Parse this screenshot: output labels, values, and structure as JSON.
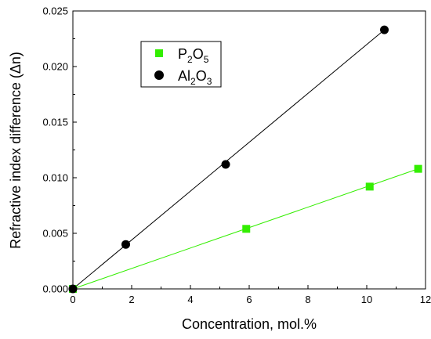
{
  "chart_data": {
    "type": "scatter",
    "title": "",
    "xlabel": "Concentration, mol.%",
    "ylabel": "Refractive index difference (Δn)",
    "xlim": [
      0,
      12
    ],
    "ylim": [
      0,
      0.025
    ],
    "xticks": [
      0,
      2,
      4,
      6,
      8,
      10,
      12
    ],
    "xtick_labels": [
      "0",
      "2",
      "4",
      "6",
      "8",
      "10",
      "12"
    ],
    "yticks": [
      0.0,
      0.005,
      0.01,
      0.015,
      0.02,
      0.025
    ],
    "ytick_labels": [
      "0.000",
      "0.005",
      "0.010",
      "0.015",
      "0.020",
      "0.025"
    ],
    "grid": false,
    "legend_position": "top-left",
    "series": [
      {
        "name": "P2O5",
        "legend": {
          "base": "P",
          "sub1": "2",
          "mid": "O",
          "sub2": "5"
        },
        "marker": "square",
        "color": "#33ee00",
        "points": [
          {
            "x": 0,
            "y": 0.0
          },
          {
            "x": 5.9,
            "y": 0.0054
          },
          {
            "x": 10.1,
            "y": 0.0092
          },
          {
            "x": 11.75,
            "y": 0.0108
          }
        ],
        "fit_line": {
          "x": [
            0,
            11.75
          ],
          "y": [
            0,
            0.0108
          ]
        }
      },
      {
        "name": "Al2O3",
        "legend": {
          "base": "Al",
          "sub1": "2",
          "mid": "O",
          "sub2": "3"
        },
        "marker": "circle",
        "color": "#000000",
        "points": [
          {
            "x": 0,
            "y": 0.0
          },
          {
            "x": 1.8,
            "y": 0.004
          },
          {
            "x": 5.2,
            "y": 0.0112
          },
          {
            "x": 10.6,
            "y": 0.0233
          }
        ],
        "fit_line": {
          "x": [
            0,
            10.6
          ],
          "y": [
            0,
            0.0233
          ]
        }
      }
    ]
  }
}
